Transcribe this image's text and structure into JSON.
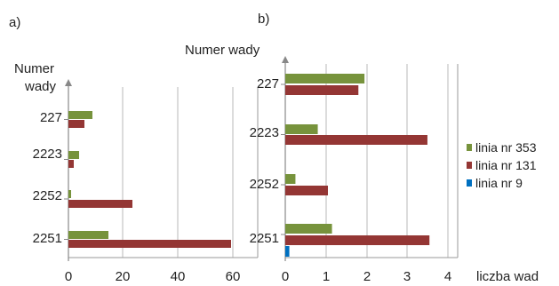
{
  "chart_data": [
    {
      "type": "bar",
      "orientation": "horizontal",
      "panel_label": "a)",
      "ylabel": "Numer wady",
      "xlabel": "",
      "categories": [
        "227",
        "2223",
        "2252",
        "2251"
      ],
      "xlim": [
        0,
        65
      ],
      "xticks": [
        "0",
        "20",
        "40",
        "60"
      ],
      "grid": true,
      "series": [
        {
          "name": "linia nr 353",
          "color": "#77933c",
          "values": [
            9,
            4,
            1,
            15
          ]
        },
        {
          "name": "linia nr 131",
          "color": "#943634",
          "values": [
            6,
            2,
            24,
            61
          ]
        },
        {
          "name": "linia nr 9",
          "color": "#0070c0",
          "values": [
            0,
            0,
            0,
            0
          ]
        }
      ]
    },
    {
      "type": "bar",
      "orientation": "horizontal",
      "panel_label": "b)",
      "ylabel": "Numer wady",
      "xlabel": "liczba wad",
      "categories": [
        "227",
        "2223",
        "2252",
        "2251"
      ],
      "xlim": [
        0,
        4.3
      ],
      "xticks": [
        "0",
        "1",
        "2",
        "3",
        "4"
      ],
      "grid": true,
      "legend_position": "right",
      "series": [
        {
          "name": "linia nr 353",
          "color": "#77933c",
          "values": [
            1.95,
            0.8,
            0.25,
            1.15
          ]
        },
        {
          "name": "linia nr 131",
          "color": "#943634",
          "values": [
            1.8,
            3.5,
            1.05,
            3.55
          ]
        },
        {
          "name": "linia nr 9",
          "color": "#0070c0",
          "values": [
            0,
            0,
            0,
            0.1
          ]
        }
      ]
    }
  ]
}
